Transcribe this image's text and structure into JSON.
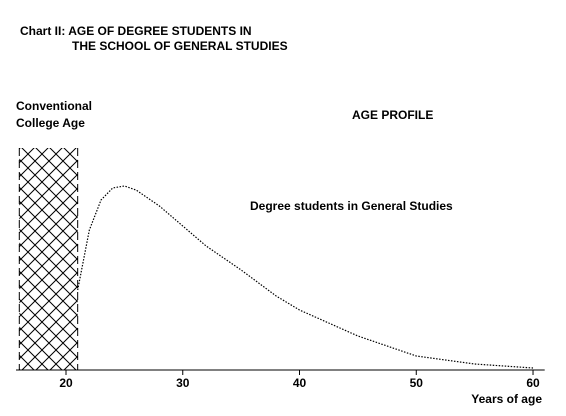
{
  "chart_data": {
    "type": "line",
    "title": [
      "Chart II: AGE OF DEGREE STUDENTS IN",
      "THE SCHOOL OF GENERAL STUDIES"
    ],
    "annotation": "AGE PROFILE",
    "x_label": "Years of age",
    "shaded_region": {
      "label": [
        "Conventional",
        "College Age"
      ],
      "range": [
        16,
        21
      ]
    },
    "x": [
      21,
      22,
      23,
      24,
      25,
      26,
      28,
      30,
      32,
      35,
      38,
      40,
      45,
      50,
      55,
      60
    ],
    "series": [
      {
        "name": "Degree students in General Studies",
        "color": "#000000",
        "values": [
          40,
          70,
          85,
          91,
          92,
          90,
          82,
          72,
          62,
          50,
          37,
          30,
          17,
          7,
          3,
          1
        ]
      }
    ],
    "xlim": [
      16,
      61
    ],
    "xticks": [
      20,
      30,
      40,
      50,
      60
    ],
    "ylim": [
      0,
      100
    ]
  }
}
